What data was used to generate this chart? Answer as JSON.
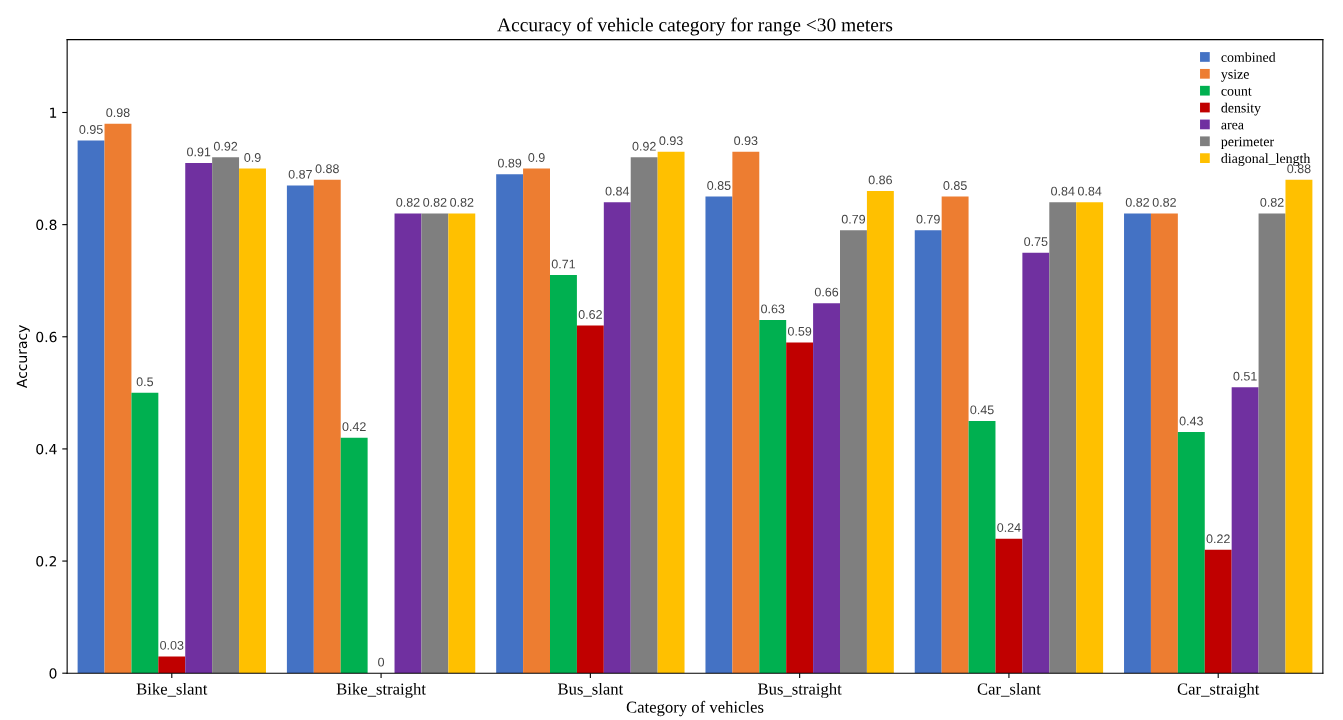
{
  "chart_data": {
    "type": "bar",
    "title": "Accuracy of vehicle category for range <30 meters",
    "xlabel": "Category of vehicles",
    "ylabel": "Accuracy",
    "categories": [
      "Bike_slant",
      "Bike_straight",
      "Bus_slant",
      "Bus_straight",
      "Car_slant",
      "Car_straight"
    ],
    "series": [
      {
        "name": "combined",
        "color": "#4472c4",
        "values": [
          0.95,
          0.87,
          0.89,
          0.85,
          0.79,
          0.82
        ]
      },
      {
        "name": "ysize",
        "color": "#ed7d31",
        "values": [
          0.98,
          0.88,
          0.9,
          0.93,
          0.85,
          0.82
        ]
      },
      {
        "name": "count",
        "color": "#00b050",
        "values": [
          0.5,
          0.42,
          0.71,
          0.63,
          0.45,
          0.43
        ]
      },
      {
        "name": "density",
        "color": "#c00000",
        "values": [
          0.03,
          0,
          0.62,
          0.59,
          0.24,
          0.22
        ]
      },
      {
        "name": "area",
        "color": "#7030a0",
        "values": [
          0.91,
          0.82,
          0.84,
          0.66,
          0.75,
          0.51
        ]
      },
      {
        "name": "perimeter",
        "color": "#7f7f7f",
        "values": [
          0.92,
          0.82,
          0.92,
          0.79,
          0.84,
          0.82
        ]
      },
      {
        "name": "diagonal_length",
        "color": "#ffc000",
        "values": [
          0.9,
          0.82,
          0.93,
          0.86,
          0.84,
          0.88
        ]
      }
    ],
    "ylim": [
      0,
      1.13
    ],
    "yticks": [
      0,
      0.2,
      0.4,
      0.6,
      0.8,
      1
    ],
    "data_labels": true,
    "legend": "top right",
    "grid": false
  }
}
